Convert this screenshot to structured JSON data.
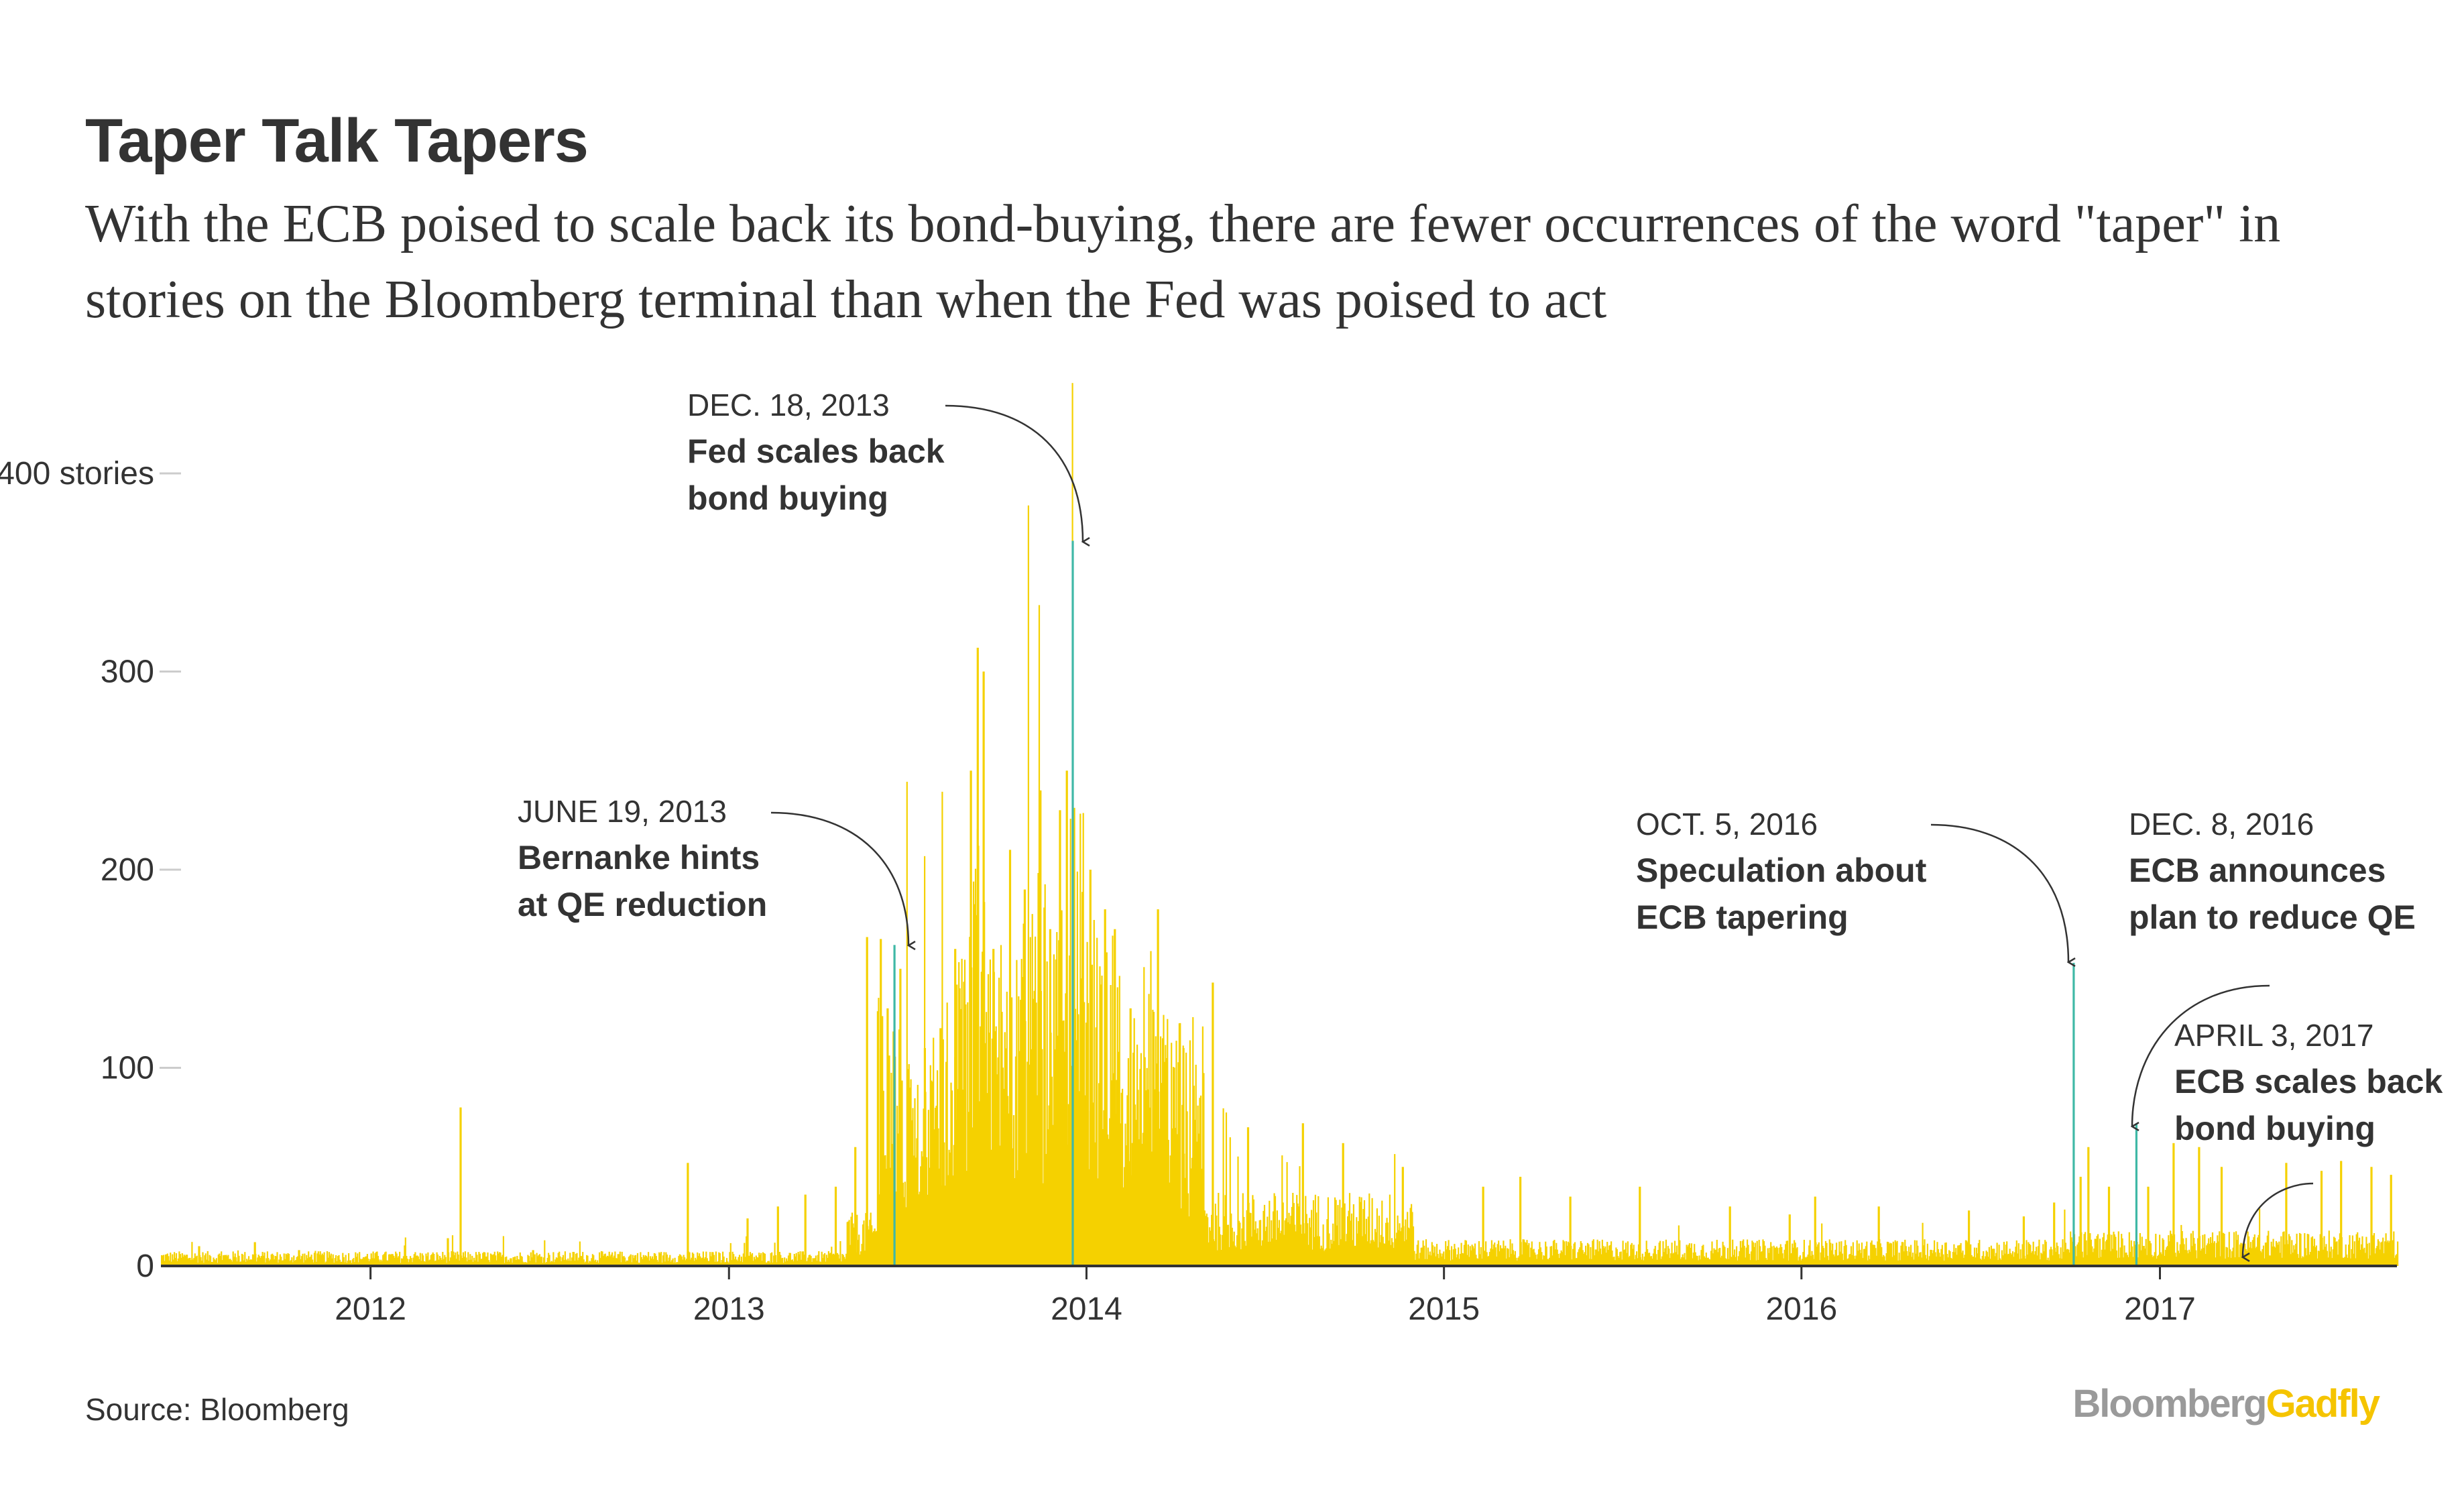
{
  "chart_data": {
    "type": "bar",
    "title": "Taper Talk Tapers",
    "subtitle": "With the ECB poised to scale back its bond-buying, there are fewer occurrences of the word \"taper\" in stories on the Bloomberg terminal than when the Fed was poised to act",
    "ylabel": "",
    "xlabel": "",
    "ylim": [
      0,
      400
    ],
    "xlim": [
      "2011-06-01",
      "2017-08-31"
    ],
    "grid": false,
    "y_ticks": [
      {
        "value": 400,
        "label": "400 stories"
      },
      {
        "value": 300,
        "label": "300"
      },
      {
        "value": 200,
        "label": "200"
      },
      {
        "value": 100,
        "label": "100"
      },
      {
        "value": 0,
        "label": "0"
      }
    ],
    "x_ticks": [
      {
        "value": "2012-01-01",
        "label": "2012"
      },
      {
        "value": "2013-01-01",
        "label": "2013"
      },
      {
        "value": "2014-01-01",
        "label": "2014"
      },
      {
        "value": "2015-01-01",
        "label": "2015"
      },
      {
        "value": "2016-01-01",
        "label": "2016"
      },
      {
        "value": "2017-01-01",
        "label": "2017"
      }
    ],
    "colors": {
      "bar": "#f5d100",
      "highlight": "#3fb8a6",
      "text": "#333333",
      "axis": "#333333",
      "tick": "#cccccc"
    },
    "series": [
      {
        "values": [
          [
            "2011-07-10",
            10
          ],
          [
            "2011-09-05",
            12
          ],
          [
            "2011-10-20",
            8
          ],
          [
            "2012-02-15",
            6
          ],
          [
            "2012-04-02",
            80
          ],
          [
            "2012-03-20",
            14
          ],
          [
            "2012-06-15",
            8
          ],
          [
            "2012-09-10",
            6
          ],
          [
            "2012-11-20",
            52
          ],
          [
            "2013-01-20",
            24
          ],
          [
            "2013-02-20",
            30
          ],
          [
            "2013-03-20",
            36
          ],
          [
            "2013-04-20",
            40
          ],
          [
            "2013-05-10",
            60
          ],
          [
            "2013-05-22",
            166
          ],
          [
            "2013-06-05",
            165
          ],
          [
            "2013-06-12",
            130
          ],
          [
            "2013-06-19",
            162
          ],
          [
            "2013-06-25",
            150
          ],
          [
            "2013-07-05",
            90
          ],
          [
            "2013-07-20",
            110
          ],
          [
            "2013-08-05",
            120
          ],
          [
            "2013-08-20",
            160
          ],
          [
            "2013-09-05",
            250
          ],
          [
            "2013-09-12",
            312
          ],
          [
            "2013-09-18",
            300
          ],
          [
            "2013-09-28",
            160
          ],
          [
            "2013-10-15",
            210
          ],
          [
            "2013-10-30",
            190
          ],
          [
            "2013-11-15",
            240
          ],
          [
            "2013-11-25",
            170
          ],
          [
            "2013-12-05",
            230
          ],
          [
            "2013-12-12",
            250
          ],
          [
            "2013-12-18",
            366
          ],
          [
            "2014-01-05",
            200
          ],
          [
            "2014-01-20",
            180
          ],
          [
            "2014-01-30",
            170
          ],
          [
            "2014-02-15",
            130
          ],
          [
            "2014-03-15",
            180
          ],
          [
            "2014-04-10",
            110
          ],
          [
            "2014-05-10",
            143
          ],
          [
            "2014-06-15",
            70
          ],
          [
            "2014-08-10",
            72
          ],
          [
            "2014-09-20",
            62
          ],
          [
            "2014-11-20",
            50
          ],
          [
            "2015-02-10",
            40
          ],
          [
            "2015-03-20",
            45
          ],
          [
            "2015-05-10",
            35
          ],
          [
            "2015-07-20",
            40
          ],
          [
            "2015-10-20",
            30
          ],
          [
            "2015-12-20",
            26
          ],
          [
            "2016-01-15",
            35
          ],
          [
            "2016-03-20",
            30
          ],
          [
            "2016-06-20",
            28
          ],
          [
            "2016-08-15",
            25
          ],
          [
            "2016-09-15",
            32
          ],
          [
            "2016-10-05",
            153
          ],
          [
            "2016-10-12",
            45
          ],
          [
            "2016-10-20",
            60
          ],
          [
            "2016-11-10",
            40
          ],
          [
            "2016-12-08",
            72
          ],
          [
            "2016-12-20",
            40
          ],
          [
            "2017-01-15",
            62
          ],
          [
            "2017-02-10",
            60
          ],
          [
            "2017-03-05",
            50
          ],
          [
            "2017-04-03",
            6
          ],
          [
            "2017-05-10",
            52
          ],
          [
            "2017-06-15",
            48
          ],
          [
            "2017-07-05",
            53
          ],
          [
            "2017-08-05",
            50
          ],
          [
            "2017-08-25",
            46
          ]
        ]
      }
    ],
    "annotations": [
      {
        "date_label": "JUNE 19, 2013",
        "lines": [
          "Bernanke hints",
          "at QE reduction"
        ]
      },
      {
        "date_label": "DEC. 18, 2013",
        "lines": [
          "Fed scales back",
          "bond buying"
        ]
      },
      {
        "date_label": "OCT. 5, 2016",
        "lines": [
          "Speculation about",
          "ECB tapering"
        ]
      },
      {
        "date_label": "DEC. 8, 2016",
        "lines": [
          "ECB announces",
          "plan to reduce QE"
        ]
      },
      {
        "date_label": "APRIL 3, 2017",
        "lines": [
          "ECB scales back",
          "bond buying"
        ]
      }
    ]
  },
  "footer": {
    "source": "Source: Bloomberg",
    "logo_part1": "Bloomberg",
    "logo_part2": "Gadfly"
  }
}
